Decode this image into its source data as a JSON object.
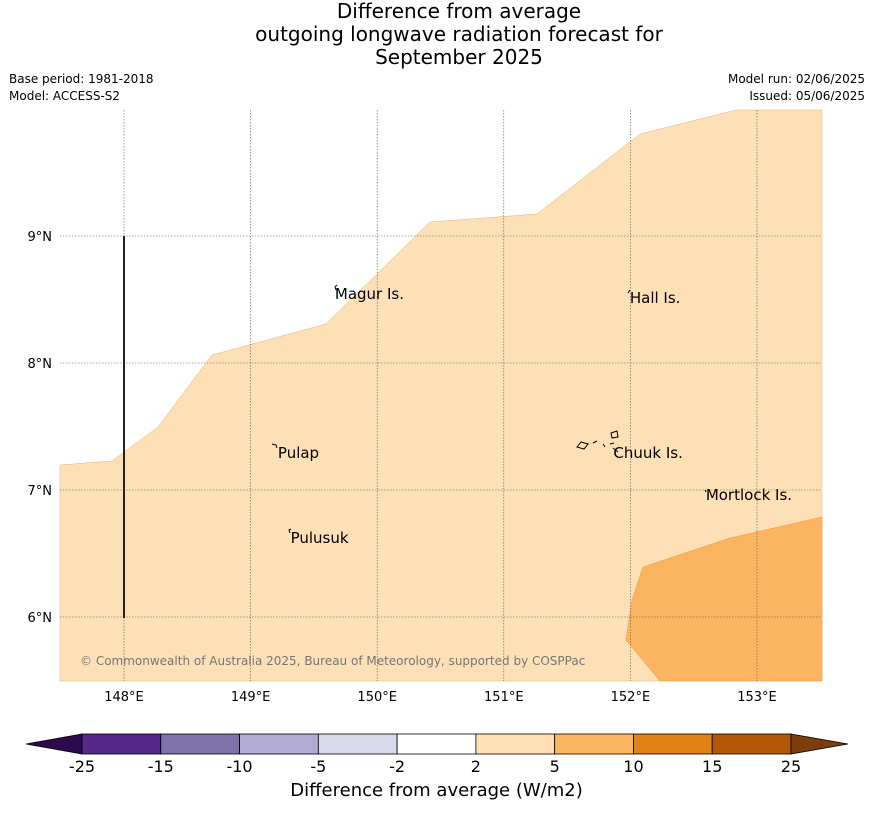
{
  "title": {
    "line1": "Difference from average",
    "line2": "outgoing longwave radiation forecast for",
    "line3": "September 2025"
  },
  "meta": {
    "base_period": "Base period: 1981-2018",
    "model": "Model: ACCESS-S2",
    "model_run": "Model run: 02/06/2025",
    "issued": "Issued: 05/06/2025"
  },
  "map": {
    "lon_range": [
      147.5,
      153.5
    ],
    "lat_range": [
      5.5,
      10.0
    ],
    "lon_ticks": [
      {
        "value": 148,
        "label": "148°E"
      },
      {
        "value": 149,
        "label": "149°E"
      },
      {
        "value": 150,
        "label": "150°E"
      },
      {
        "value": 151,
        "label": "151°E"
      },
      {
        "value": 152,
        "label": "152°E"
      },
      {
        "value": 153,
        "label": "153°E"
      }
    ],
    "lat_ticks": [
      {
        "value": 6,
        "label": "6°N"
      },
      {
        "value": 7,
        "label": "7°N"
      },
      {
        "value": 8,
        "label": "8°N"
      },
      {
        "value": 9,
        "label": "9°N"
      }
    ],
    "gridlines": true,
    "places": [
      {
        "name": "Magur Is.",
        "lon": 149.65,
        "lat": 8.55
      },
      {
        "name": "Hall Is.",
        "lon": 151.98,
        "lat": 8.52
      },
      {
        "name": "Pulap",
        "lon": 149.2,
        "lat": 7.3
      },
      {
        "name": "Chuuk Is.",
        "lon": 151.85,
        "lat": 7.3
      },
      {
        "name": "Mortlock Is.",
        "lon": 152.58,
        "lat": 6.97
      },
      {
        "name": "Pulusuk",
        "lon": 149.3,
        "lat": 6.63
      }
    ],
    "copyright": "© Commonwealth of Australia 2025, Bureau of Meteorology, supported by COSPPac"
  },
  "colorbar": {
    "title": "Difference from average (W/m2)",
    "ticks": [
      "-25",
      "-15",
      "-10",
      "-5",
      "-2",
      "2",
      "5",
      "10",
      "15",
      "25"
    ],
    "under_color": "#2d0a4e",
    "over_color": "#7a3d0b",
    "bin_colors": [
      "#542788",
      "#8073ac",
      "#b2abd2",
      "#d8daeb",
      "#ffffff",
      "#fde0b6",
      "#fbb561",
      "#e08214",
      "#b35806"
    ]
  }
}
